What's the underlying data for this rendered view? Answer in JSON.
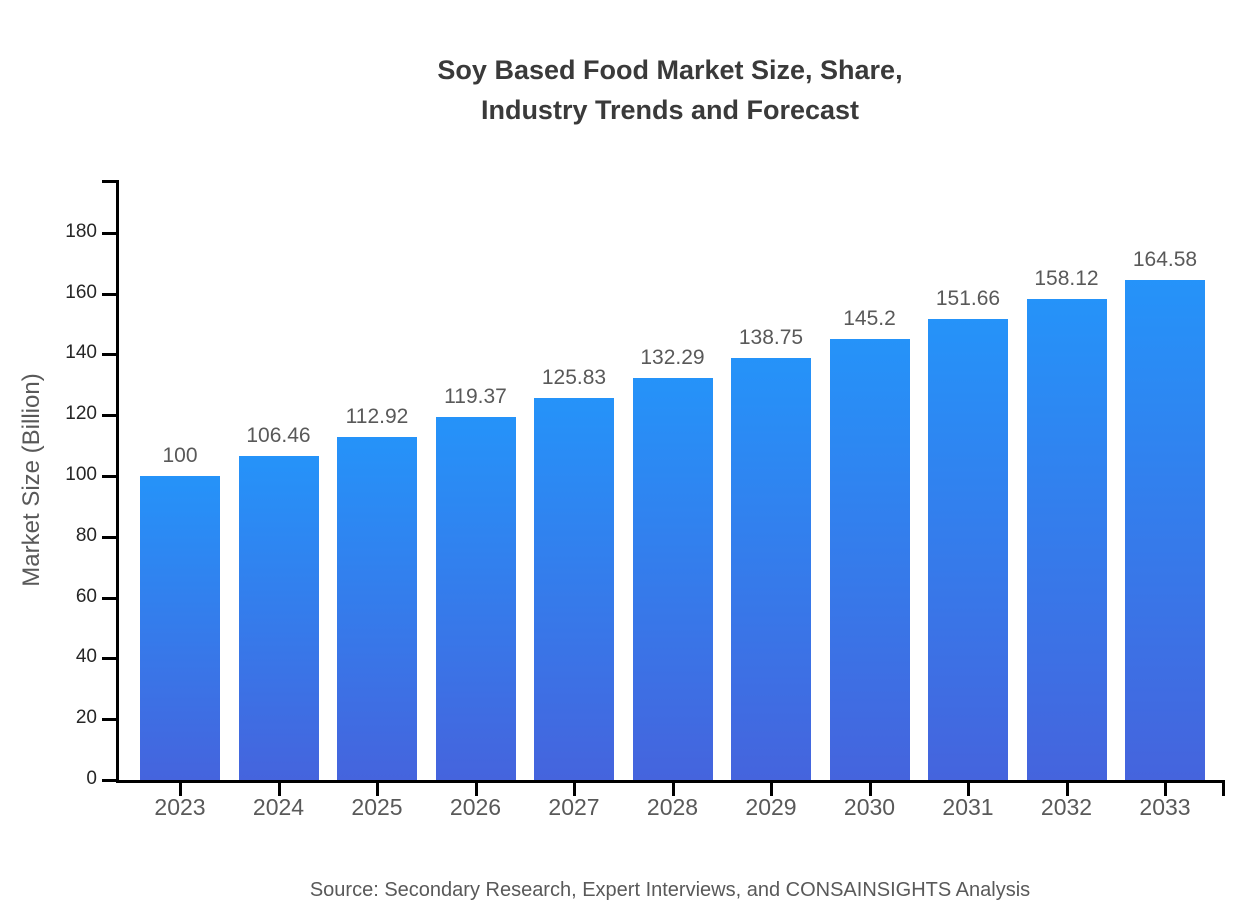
{
  "title_lines": {
    "line1": "Soy Based Food Market Size, Share,",
    "line2": "Industry Trends and Forecast"
  },
  "chart_data": {
    "type": "bar",
    "title": "Soy Based Food Market Size, Share, Industry Trends and Forecast",
    "categories": [
      "2023",
      "2024",
      "2025",
      "2026",
      "2027",
      "2028",
      "2029",
      "2030",
      "2031",
      "2032",
      "2033"
    ],
    "values": [
      100,
      106.46,
      112.92,
      119.37,
      125.83,
      132.29,
      138.75,
      145.2,
      151.66,
      158.12,
      164.58
    ],
    "value_labels": [
      "100",
      "106.46",
      "112.92",
      "119.37",
      "125.83",
      "132.29",
      "138.75",
      "145.2",
      "151.66",
      "158.12",
      "164.58"
    ],
    "xlabel": "",
    "ylabel": "Market Size (Billion)",
    "ylim": [
      0,
      197.4
    ],
    "yticks": [
      0,
      20,
      40,
      60,
      80,
      100,
      120,
      140,
      160,
      180
    ],
    "grid": false,
    "legend": "none",
    "bar_color_top": "#2593f9",
    "bar_color_bottom": "#4564dd"
  },
  "colors": {
    "axis": "#000000",
    "title_text": "#3a3a3a",
    "tick_text": "#262626",
    "label_text": "#595959"
  },
  "source_note": "Source: Secondary Research, Expert Interviews, and CONSAINSIGHTS Analysis"
}
